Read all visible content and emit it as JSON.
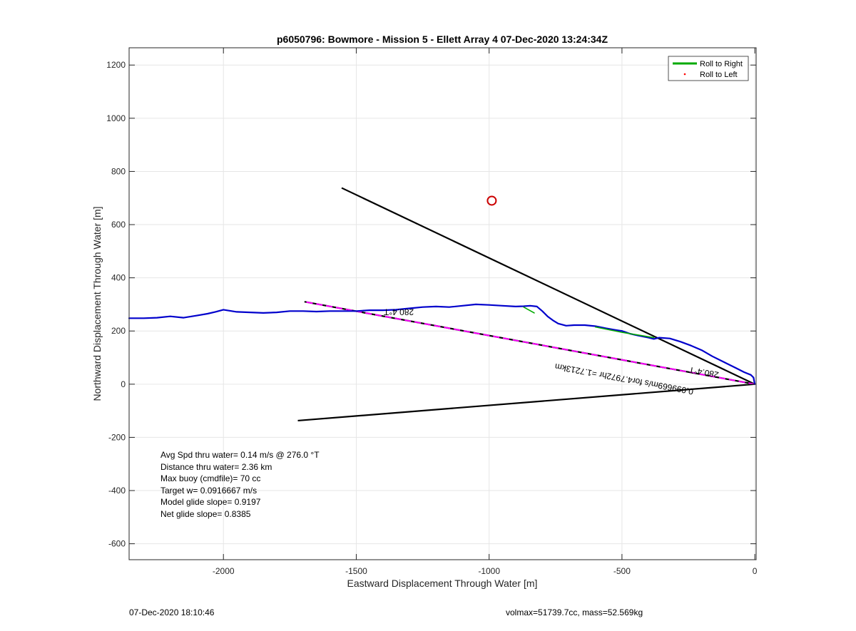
{
  "chart_data": {
    "type": "line",
    "title": "p6050796: Bowmore - Mission 5 - Ellett Array 4 07-Dec-2020 13:24:34Z",
    "xlabel": "Eastward Displacement Through Water [m]",
    "ylabel": "Northward Displacement Through Water [m]",
    "xlim": [
      -2355,
      5
    ],
    "ylim": [
      -660,
      1265
    ],
    "xticks": [
      -2000,
      -1500,
      -1000,
      -500,
      0
    ],
    "yticks": [
      -600,
      -400,
      -200,
      0,
      200,
      400,
      600,
      800,
      1000,
      1200
    ],
    "grid": true,
    "legend": {
      "position": "top-right",
      "entries": [
        {
          "label": "Roll to Right",
          "color": "#00aa00",
          "style": "line"
        },
        {
          "label": "Roll to Left",
          "color": "#ff0000",
          "style": "point"
        }
      ]
    },
    "series": [
      {
        "color": "#0000cc",
        "x": [
          0,
          -5,
          -15,
          -40,
          -70,
          -110,
          -160,
          -200,
          -240,
          -280,
          -320,
          -360,
          -380,
          -400,
          -440,
          -470,
          -500,
          -530,
          -560,
          -600,
          -640,
          -680,
          -710,
          -740,
          -760,
          -780,
          -800,
          -820,
          -845,
          -870,
          -900,
          -950,
          -1000,
          -1050,
          -1100,
          -1150,
          -1200,
          -1250,
          -1300,
          -1350,
          -1400,
          -1450,
          -1500,
          -1550,
          -1600,
          -1650,
          -1700,
          -1750,
          -1800,
          -1850,
          -1900,
          -1950,
          -2000,
          -2030,
          -2060,
          -2100,
          -2150,
          -2200,
          -2250,
          -2300,
          -2355
        ],
        "y": [
          0,
          25,
          35,
          45,
          60,
          80,
          105,
          128,
          145,
          160,
          172,
          175,
          170,
          175,
          183,
          190,
          200,
          205,
          210,
          218,
          222,
          222,
          220,
          228,
          240,
          255,
          275,
          292,
          295,
          293,
          292,
          295,
          298,
          300,
          295,
          290,
          292,
          290,
          285,
          280,
          278,
          278,
          275,
          275,
          275,
          273,
          275,
          275,
          270,
          268,
          270,
          272,
          280,
          272,
          265,
          258,
          250,
          255,
          250,
          248,
          248
        ]
      },
      {
        "color": "#00aa00",
        "x": [
          -380,
          -500,
          -600
        ],
        "y": [
          175,
          195,
          215
        ]
      },
      {
        "color": "#00aa00",
        "x": [
          -830,
          -870
        ],
        "y": [
          268,
          290
        ]
      }
    ],
    "reference_lines": [
      {
        "color": "#000000",
        "x": [
          0,
          -1555
        ],
        "y": [
          0,
          738
        ]
      },
      {
        "color": "#000000",
        "x": [
          0,
          -1720
        ],
        "y": [
          0,
          -137
        ]
      },
      {
        "color": "#000000",
        "x": [
          0,
          -1695
        ],
        "y": [
          0,
          310
        ]
      },
      {
        "color": "#ff00ff",
        "dashed": true,
        "x": [
          0,
          -1695
        ],
        "y": [
          0,
          310
        ]
      }
    ],
    "markers": [
      {
        "shape": "circle",
        "color": "#cc0000",
        "x": -990,
        "y": 690
      }
    ],
    "line_labels": [
      {
        "text": "280.4°T",
        "x": -1340,
        "y": 282,
        "rotate": 180
      },
      {
        "text": "280.4°T",
        "x": -190,
        "y": 55,
        "rotate": 190.4
      },
      {
        "text": "0.099669m/s for4.7972hr =1.7213km",
        "x": -490,
        "y": 30,
        "rotate": 190.4
      }
    ]
  },
  "annotations": [
    "Avg Spd thru water=  0.14 m/s @ 276.0 °T",
    "Distance thru water=  2.36 km",
    "Max buoy (cmdfile)= 70 cc",
    "Target w= 0.0916667 m/s",
    "Model glide slope= 0.9197",
    "Net glide slope= 0.8385"
  ],
  "footer": {
    "timestamp": "07-Dec-2020 18:10:46",
    "info": "volmax=51739.7cc, mass=52.569kg"
  }
}
